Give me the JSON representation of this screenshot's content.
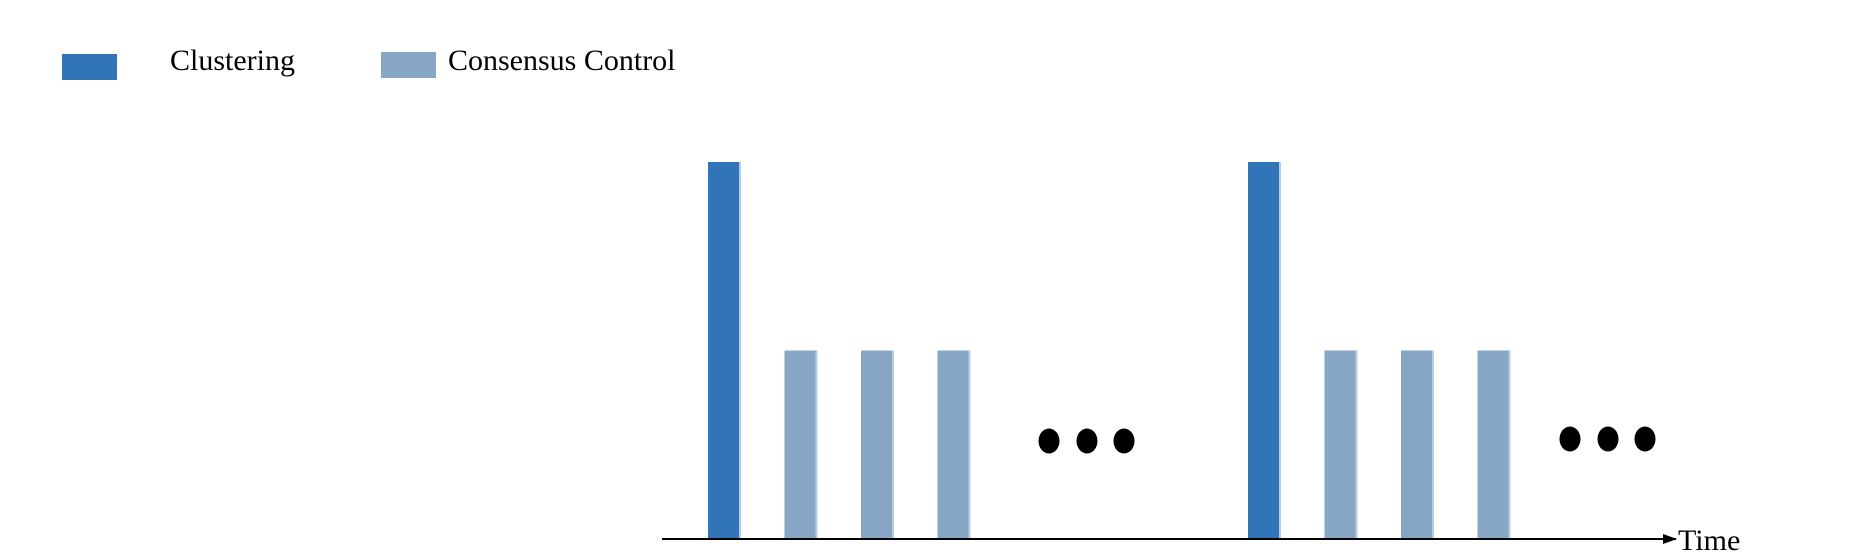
{
  "legend": {
    "items": [
      {
        "label": "Clustering",
        "color": "#3274b8"
      },
      {
        "label": "Consensus Control",
        "color": "#87a6c6"
      }
    ]
  },
  "axis": {
    "label": "Time"
  },
  "colors": {
    "clustering": "#3274b8",
    "consensus": "#87a6c6",
    "axis": "#000000"
  },
  "chart_data": {
    "type": "bar",
    "series": [
      {
        "name": "Clustering",
        "values": [
          1,
          0,
          0,
          0,
          1,
          0,
          0,
          0
        ]
      },
      {
        "name": "Consensus Control",
        "values": [
          0,
          0.5,
          0.5,
          0.5,
          0,
          0.5,
          0.5,
          0.5
        ]
      }
    ],
    "groups": [
      [
        "Clustering",
        "Consensus Control",
        "Consensus Control",
        "Consensus Control"
      ],
      [
        "Clustering",
        "Consensus Control",
        "Consensus Control",
        "Consensus Control"
      ]
    ],
    "continuation_marks": 2,
    "xlabel": "Time",
    "ylabel": "",
    "grid": false,
    "legend_position": "top-left"
  }
}
